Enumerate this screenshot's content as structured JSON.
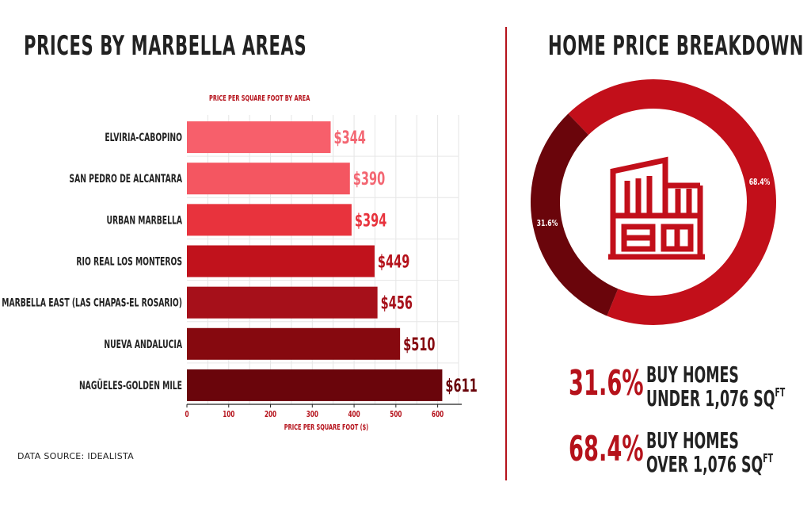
{
  "left_title": "PRICES BY MARBELLA AREAS",
  "right_title": "HOME PRICE BREAKDOWN",
  "source": "DATA SOURCE: IDEALISTA",
  "chart_data": [
    {
      "type": "bar",
      "orientation": "horizontal",
      "title": "PRICE PER SQUARE FOOT BY AREA",
      "xlabel": "PRICE PER SQUARE FOOT ($)",
      "ylabel": "",
      "xlim": [
        0,
        650
      ],
      "xticks": [
        0,
        100,
        200,
        300,
        400,
        500,
        600
      ],
      "grid": true,
      "categories": [
        "ELVIRIA-CABOPINO",
        "SAN PEDRO DE ALCANTARA",
        "URBAN MARBELLA",
        "RIO REAL LOS MONTEROS",
        "MARBELLA EAST (LAS CHAPAS-EL ROSARIO)",
        "NUEVA ANDALUCIA",
        "NAGÜELES-GOLDEN MILE"
      ],
      "values": [
        344,
        390,
        394,
        449,
        456,
        510,
        611
      ],
      "data_labels": [
        "$344",
        "$390",
        "$394",
        "$449",
        "$456",
        "$510",
        "$611"
      ],
      "colors": [
        "#f75f6b",
        "#f45661",
        "#e8333d",
        "#c1121c",
        "#a6101a",
        "#86090f",
        "#6a050b"
      ],
      "label_colors": [
        "#f36672",
        "#f36672",
        "#e8333d",
        "#b5121b",
        "#a6101a",
        "#86090f",
        "#6a050b"
      ]
    },
    {
      "type": "pie",
      "subtype": "donut",
      "slices": [
        {
          "label": "68.4%",
          "value": 68.4,
          "color": "#c20f1a"
        },
        {
          "label": "31.6%",
          "value": 31.6,
          "color": "#6a050b"
        }
      ]
    }
  ],
  "stats": [
    {
      "pct": "31.6%",
      "line1": "BUY HOMES",
      "line2": "UNDER 1,076 SQ",
      "sup": "FT"
    },
    {
      "pct": "68.4%",
      "line1": "BUY HOMES",
      "line2": "OVER 1,076 SQ",
      "sup": "FT"
    }
  ],
  "colors": {
    "accent": "#b5121b",
    "text": "#222222",
    "icon": "#c20f1a"
  },
  "icons": [
    "house-icon"
  ]
}
